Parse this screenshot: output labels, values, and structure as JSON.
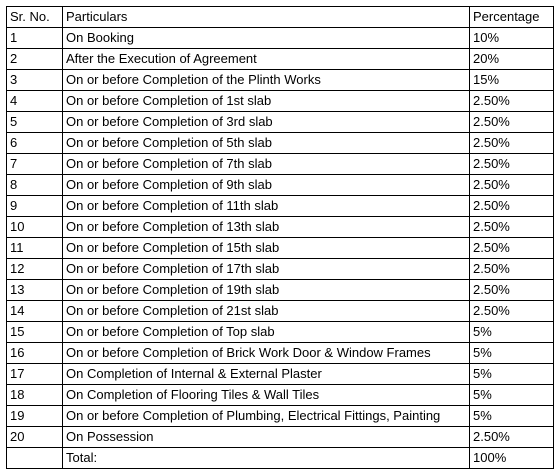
{
  "table": {
    "headers": [
      "Sr. No.",
      "Particulars",
      "Percentage"
    ],
    "rows": [
      [
        "1",
        "On Booking",
        "10%"
      ],
      [
        "2",
        "After the Execution of Agreement",
        "20%"
      ],
      [
        "3",
        "On or before Completion of the Plinth Works",
        "15%"
      ],
      [
        "4",
        "On or before Completion of 1st slab",
        "2.50%"
      ],
      [
        "5",
        "On or before Completion of 3rd slab",
        "2.50%"
      ],
      [
        "6",
        "On or before Completion of 5th slab",
        "2.50%"
      ],
      [
        "7",
        "On or before Completion of 7th slab",
        "2.50%"
      ],
      [
        "8",
        "On or before Completion of 9th slab",
        "2.50%"
      ],
      [
        "9",
        "On or before Completion of 11th slab",
        "2.50%"
      ],
      [
        "10",
        "On or before Completion of 13th slab",
        "2.50%"
      ],
      [
        "11",
        "On or before Completion of 15th slab",
        "2.50%"
      ],
      [
        "12",
        "On or before Completion of 17th slab",
        "2.50%"
      ],
      [
        "13",
        "On or before Completion of 19th slab",
        "2.50%"
      ],
      [
        "14",
        "On or before Completion of 21st slab",
        "2.50%"
      ],
      [
        "15",
        "On or before Completion of Top slab",
        "5%"
      ],
      [
        "16",
        "On or before Completion of Brick Work Door & Window Frames",
        "5%"
      ],
      [
        "17",
        "On Completion of Internal & External Plaster",
        "5%"
      ],
      [
        "18",
        "On Completion of Flooring Tiles & Wall Tiles",
        "5%"
      ],
      [
        "19",
        "On or before Completion of Plumbing, Electrical Fittings, Painting",
        "5%"
      ],
      [
        "20",
        "On Possession",
        "2.50%"
      ]
    ],
    "total": [
      "",
      "Total:",
      "100%"
    ]
  }
}
